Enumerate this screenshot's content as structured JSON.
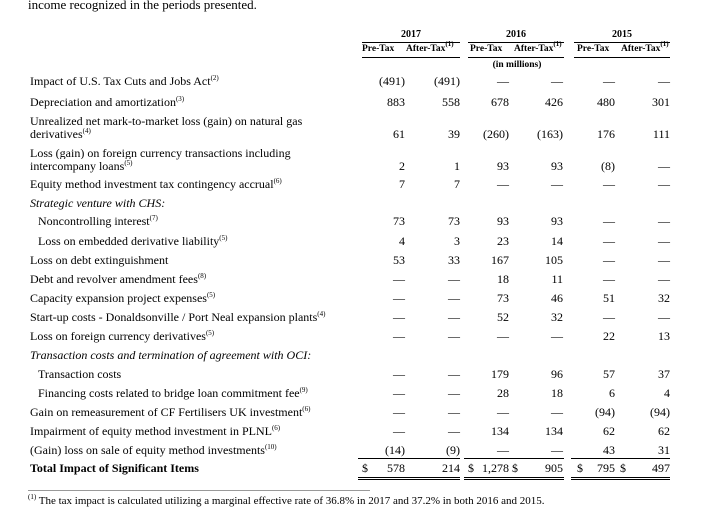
{
  "intro_text": "income recognized in the periods presented.",
  "years": [
    "2017",
    "2016",
    "2015"
  ],
  "sub_headers": {
    "pre_tax": "Pre-Tax",
    "after_tax": "After-Tax",
    "after_tax_note": "(1)"
  },
  "units_note": "(in millions)",
  "rows": [
    {
      "label": "Impact of U.S. Tax Cuts and Jobs Act",
      "note": "(2)",
      "values": [
        "(491)",
        "(491)",
        "—",
        "—",
        "—",
        "—"
      ]
    },
    {
      "label": "Depreciation and amortization",
      "note": "(3)",
      "values": [
        "883",
        "558",
        "678",
        "426",
        "480",
        "301"
      ]
    },
    {
      "label": "Unrealized net mark-to-market loss (gain) on natural gas derivatives",
      "note": "(4)",
      "values": [
        "61",
        "39",
        "(260)",
        "(163)",
        "176",
        "111"
      ]
    },
    {
      "label": "Loss (gain) on foreign currency transactions including intercompany loans",
      "note": "(5)",
      "values": [
        "2",
        "1",
        "93",
        "93",
        "(8)",
        "—"
      ]
    },
    {
      "label": "Equity method investment tax contingency accrual",
      "note": "(6)",
      "values": [
        "7",
        "7",
        "—",
        "—",
        "—",
        "—"
      ]
    },
    {
      "label": "Strategic venture with CHS:",
      "note": "",
      "values": []
    },
    {
      "label": "Noncontrolling interest",
      "note": "(7)",
      "values": [
        "73",
        "73",
        "93",
        "93",
        "—",
        "—"
      ]
    },
    {
      "label": "Loss on embedded derivative liability",
      "note": "(5)",
      "values": [
        "4",
        "3",
        "23",
        "14",
        "—",
        "—"
      ]
    },
    {
      "label": "Loss on debt extinguishment",
      "note": "",
      "values": [
        "53",
        "33",
        "167",
        "105",
        "—",
        "—"
      ]
    },
    {
      "label": "Debt and revolver amendment fees",
      "note": "(8)",
      "values": [
        "—",
        "—",
        "18",
        "11",
        "—",
        "—"
      ]
    },
    {
      "label": "Capacity expansion project expenses",
      "note": "(5)",
      "values": [
        "—",
        "—",
        "73",
        "46",
        "51",
        "32"
      ]
    },
    {
      "label": "Start-up costs - Donaldsonville / Port Neal expansion plants",
      "note": "(4)",
      "values": [
        "—",
        "—",
        "52",
        "32",
        "—",
        "—"
      ]
    },
    {
      "label": "Loss on foreign currency derivatives",
      "note": "(5)",
      "values": [
        "—",
        "—",
        "—",
        "—",
        "22",
        "13"
      ]
    },
    {
      "label": "Transaction costs and termination of agreement with OCI:",
      "note": "",
      "values": []
    },
    {
      "label": "Transaction costs",
      "note": "",
      "values": [
        "—",
        "—",
        "179",
        "96",
        "57",
        "37"
      ]
    },
    {
      "label": "Financing costs related to bridge loan commitment fee",
      "note": "(9)",
      "values": [
        "—",
        "—",
        "28",
        "18",
        "6",
        "4"
      ]
    },
    {
      "label": "Gain on remeasurement of CF Fertilisers UK investment",
      "note": "(6)",
      "values": [
        "—",
        "—",
        "—",
        "—",
        "(94)",
        "(94)"
      ]
    },
    {
      "label": "Impairment of equity method investment in PLNL",
      "note": "(6)",
      "values": [
        "—",
        "—",
        "134",
        "134",
        "62",
        "62"
      ]
    },
    {
      "label": "(Gain) loss on sale of equity method investments",
      "note": "(10)",
      "values": [
        "(14)",
        "(9)",
        "—",
        "—",
        "43",
        "31"
      ]
    },
    {
      "label": "Total Impact of Significant Items",
      "note": "",
      "values": [
        "578",
        "214",
        "1,278",
        "905",
        "795",
        "497"
      ]
    }
  ],
  "currency_symbol": "$",
  "footnote": {
    "marker": "(1)",
    "text": "The tax impact is calculated utilizing a marginal effective rate of 36.8% in 2017 and 37.2% in both 2016 and 2015."
  }
}
